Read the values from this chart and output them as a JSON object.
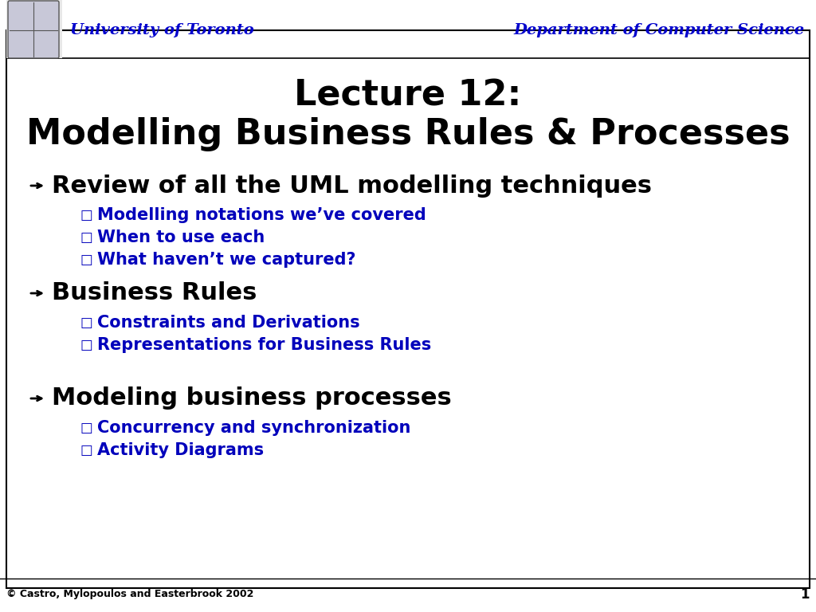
{
  "title_line1": "Lecture 12:",
  "title_line2": "Modelling Business Rules & Processes",
  "header_left": "University of Toronto",
  "header_right": "Department of Computer Science",
  "header_color": "#0000CC",
  "title_color": "#000000",
  "bullet_main_color": "#000000",
  "bullet_sub_color": "#0000BB",
  "footer_text": "© Castro, Mylopoulos and Easterbrook 2002",
  "footer_number": "1",
  "background_color": "#ffffff",
  "border_color": "#000000",
  "sections": [
    {
      "heading": "Review of all the UML modelling techniques",
      "sub_items": [
        "Modelling notations we’ve covered",
        "When to use each",
        "What haven’t we captured?"
      ]
    },
    {
      "heading": "Business Rules",
      "sub_items": [
        "Constraints and Derivations",
        "Representations for Business Rules"
      ]
    },
    {
      "heading": "Modeling business processes",
      "sub_items": [
        "Concurrency and synchronization",
        "Activity Diagrams"
      ]
    }
  ]
}
